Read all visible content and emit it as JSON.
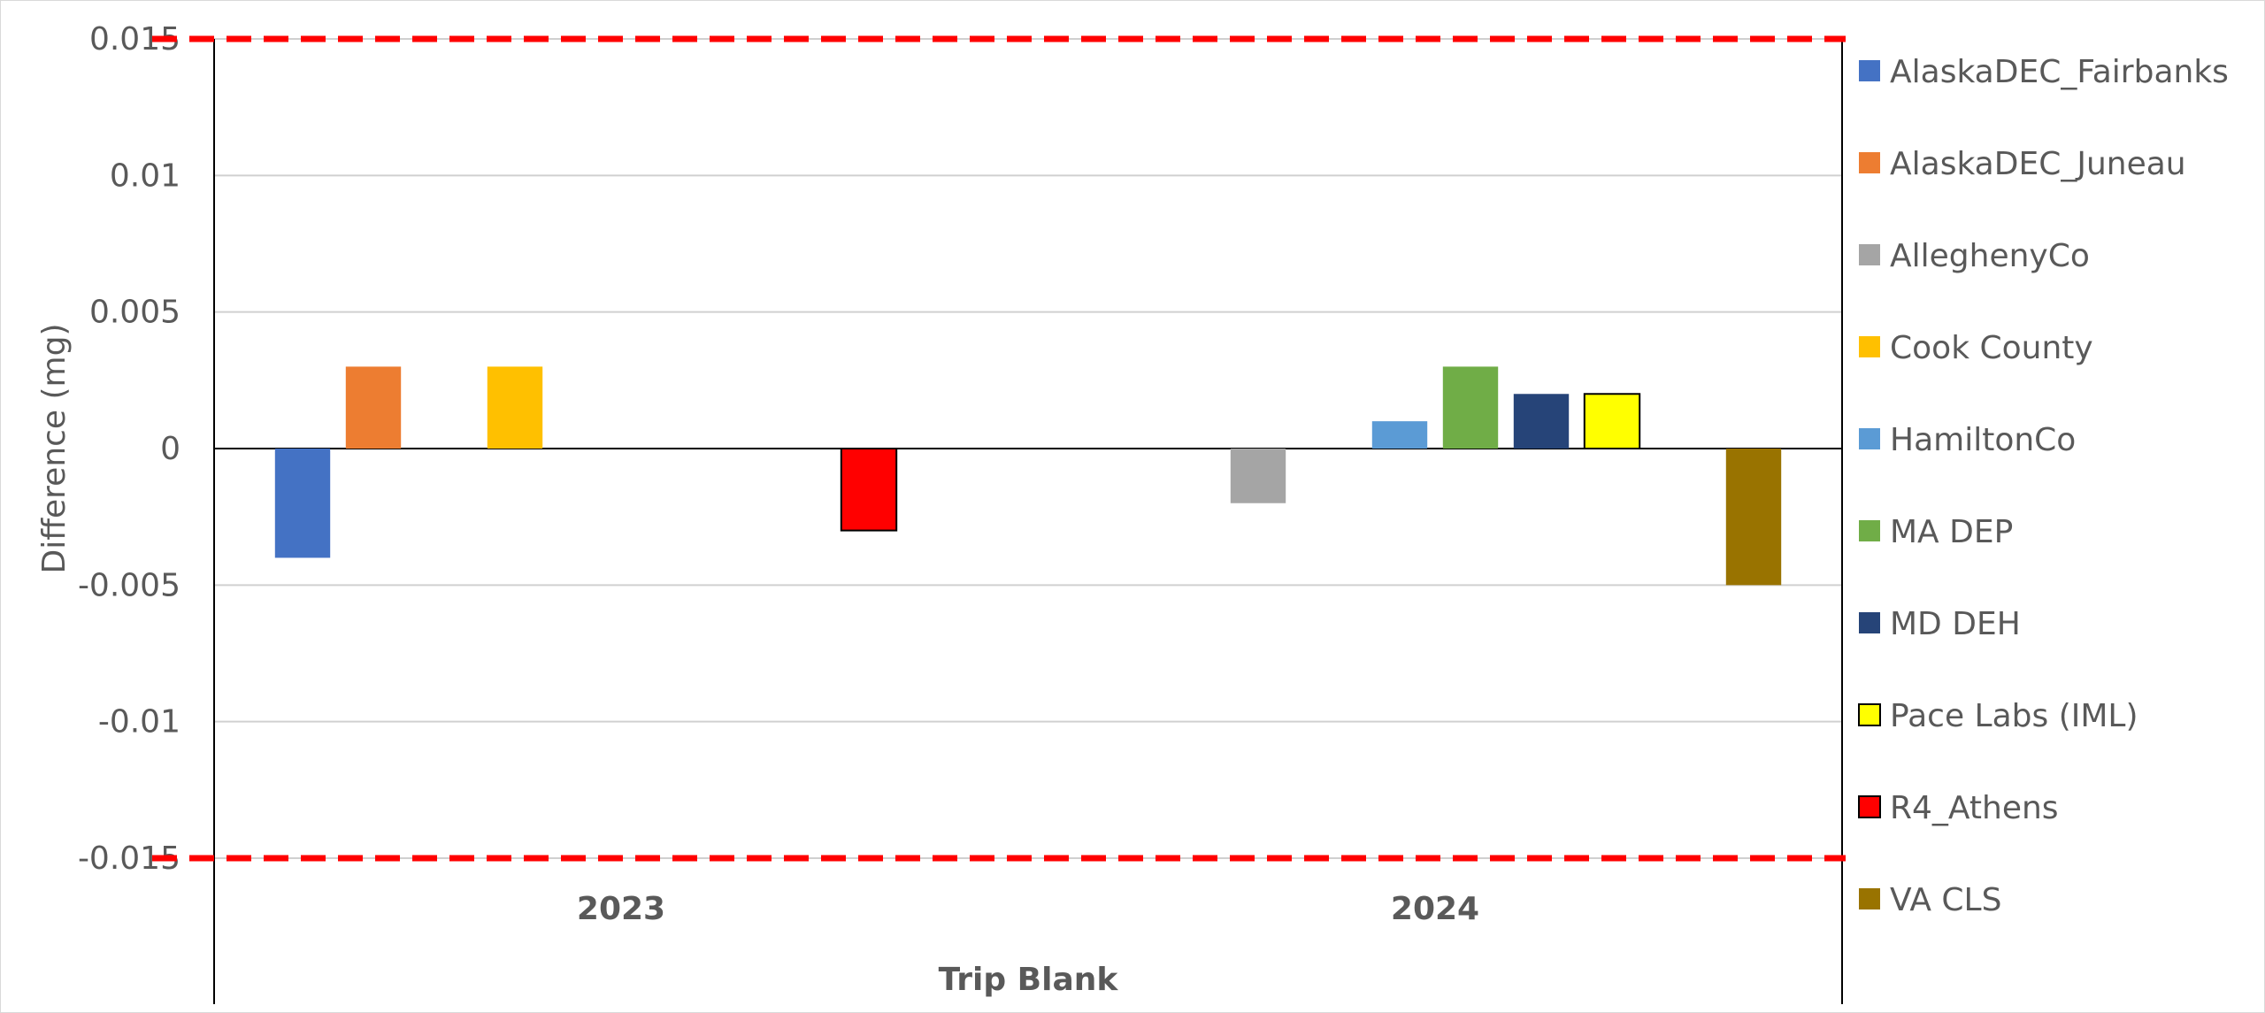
{
  "chart_data": {
    "type": "bar",
    "ylabel": "Difference (mg)",
    "xlabel": "Trip Blank",
    "ylim": [
      -0.015,
      0.015
    ],
    "yticks": [
      0.015,
      0.01,
      0.005,
      0,
      -0.005,
      -0.01,
      -0.015
    ],
    "ytick_labels": [
      "0.015",
      "0.01",
      "0.005",
      "0",
      "-0.005",
      "-0.01",
      "-0.015"
    ],
    "grid": true,
    "legend_position": "right",
    "categories": [
      "2023",
      "2024"
    ],
    "limit_lines": {
      "values": [
        0.015,
        -0.015
      ],
      "color": "#ff0000",
      "style": "dashed"
    },
    "series": [
      {
        "name": "AlaskaDEC_Fairbanks",
        "color": "#4472c4",
        "values": [
          -0.004,
          null
        ]
      },
      {
        "name": "AlaskaDEC_Juneau",
        "color": "#ed7d31",
        "values": [
          0.003,
          null
        ]
      },
      {
        "name": "AlleghenyCo",
        "color": "#a5a5a5",
        "values": [
          null,
          -0.002
        ]
      },
      {
        "name": "Cook County",
        "color": "#ffc000",
        "values": [
          0.003,
          null
        ]
      },
      {
        "name": "HamiltonCo",
        "color": "#5b9bd5",
        "values": [
          null,
          0.001
        ]
      },
      {
        "name": "MA DEP",
        "color": "#70ad47",
        "values": [
          null,
          0.003
        ]
      },
      {
        "name": "MD DEH",
        "color": "#264478",
        "values": [
          null,
          0.002
        ]
      },
      {
        "name": "Pace Labs (IML)",
        "color": "#ffff00",
        "outline": "#000000",
        "values": [
          null,
          0.002
        ]
      },
      {
        "name": "R4_Athens",
        "color": "#ff0000",
        "outline": "#000000",
        "values": [
          -0.003,
          null
        ]
      },
      {
        "name": "VA CLS",
        "color": "#997300",
        "values": [
          null,
          -0.005
        ]
      }
    ]
  }
}
